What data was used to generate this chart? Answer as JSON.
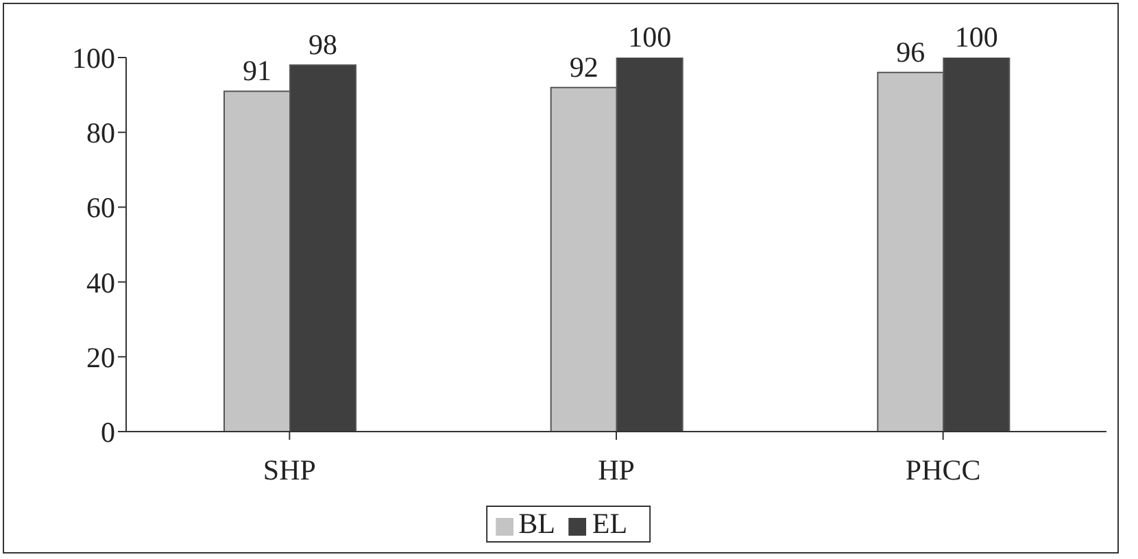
{
  "chart_data": {
    "type": "bar",
    "categories": [
      "SHP",
      "HP",
      "PHCC"
    ],
    "series": [
      {
        "name": "BL",
        "color": "#c4c4c4",
        "values": [
          91,
          92,
          96
        ]
      },
      {
        "name": "EL",
        "color": "#3f3f3f",
        "values": [
          98,
          100,
          100
        ]
      }
    ],
    "ylim": [
      0,
      100
    ],
    "yticks": [
      0,
      20,
      40,
      60,
      80,
      100
    ],
    "grid": false,
    "legend": "bottom",
    "data_labels": true
  }
}
